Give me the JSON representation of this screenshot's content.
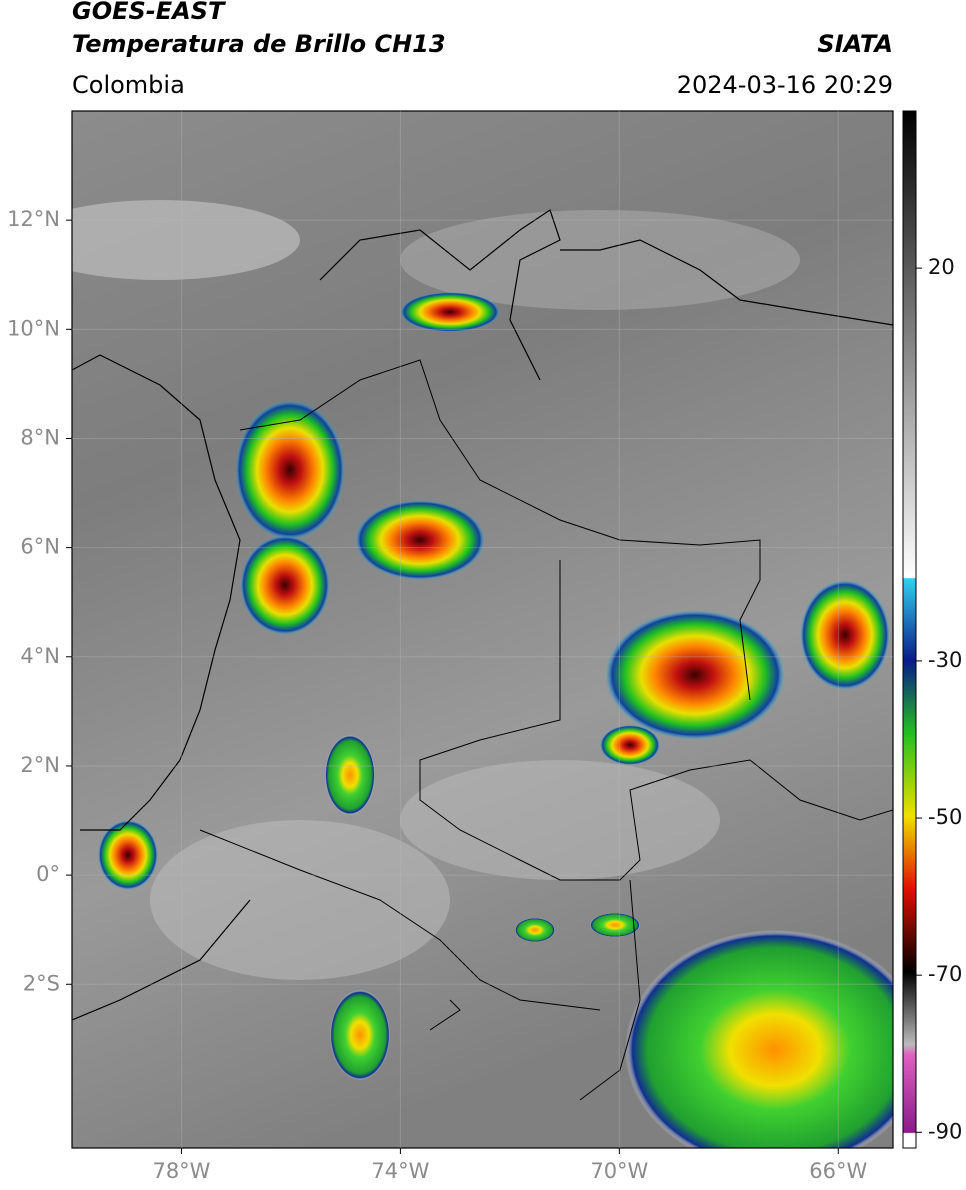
{
  "header": {
    "title": "GOES-EAST",
    "subtitle": "Temperatura de Brillo CH13",
    "region": "Colombia",
    "source": "SIATA",
    "datetime": "2024-03-16 20:29"
  },
  "map": {
    "xlim": [
      -80,
      -65
    ],
    "ylim": [
      -5,
      14
    ],
    "xticks": [
      {
        "value": -78,
        "label": "78°W"
      },
      {
        "value": -74,
        "label": "74°W"
      },
      {
        "value": -70,
        "label": "70°W"
      },
      {
        "value": -66,
        "label": "66°W"
      }
    ],
    "yticks": [
      {
        "value": 12,
        "label": "12°N"
      },
      {
        "value": 10,
        "label": "10°N"
      },
      {
        "value": 8,
        "label": "8°N"
      },
      {
        "value": 6,
        "label": "6°N"
      },
      {
        "value": 4,
        "label": "4°N"
      },
      {
        "value": 2,
        "label": "2°N"
      },
      {
        "value": 0,
        "label": "0°"
      },
      {
        "value": -2,
        "label": "2°S"
      }
    ],
    "grid": true
  },
  "colorbar": {
    "lim": [
      -92,
      40
    ],
    "ticks": [
      20,
      -30,
      -50,
      -70,
      -90
    ]
  }
}
